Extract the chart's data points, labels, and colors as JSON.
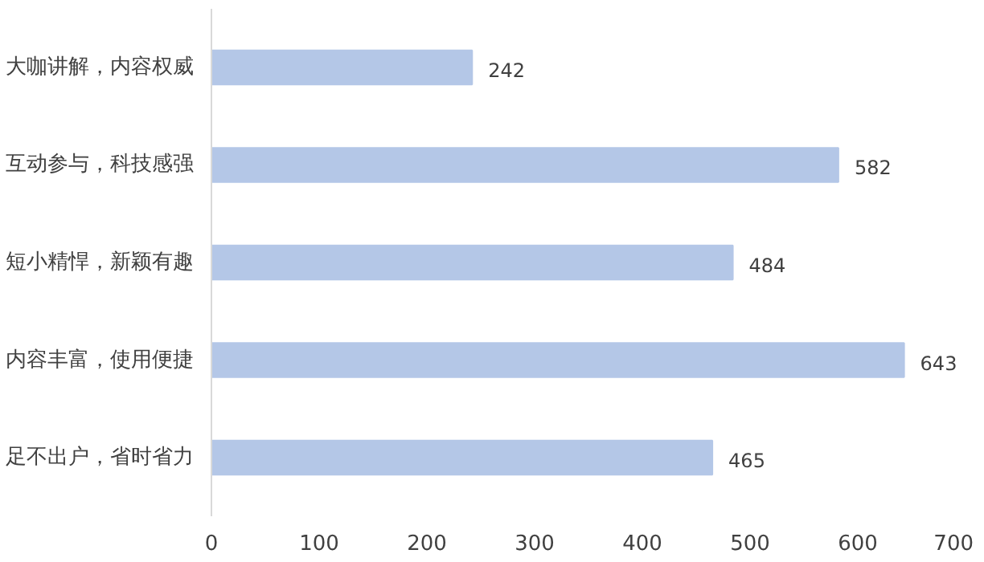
{
  "chart_data": {
    "type": "bar",
    "orientation": "horizontal",
    "categories": [
      "大咖讲解，内容权威",
      "互动参与，科技感强",
      "短小精悍，新颖有趣",
      "内容丰富，使用便捷",
      "足不出户，省时省力"
    ],
    "values": [
      242,
      582,
      484,
      643,
      465
    ],
    "color": "#b4c7e7",
    "xlim": [
      0,
      700
    ],
    "xticks": [
      0,
      100,
      200,
      300,
      400,
      500,
      600,
      700
    ],
    "data_labels": true,
    "grid": false
  }
}
